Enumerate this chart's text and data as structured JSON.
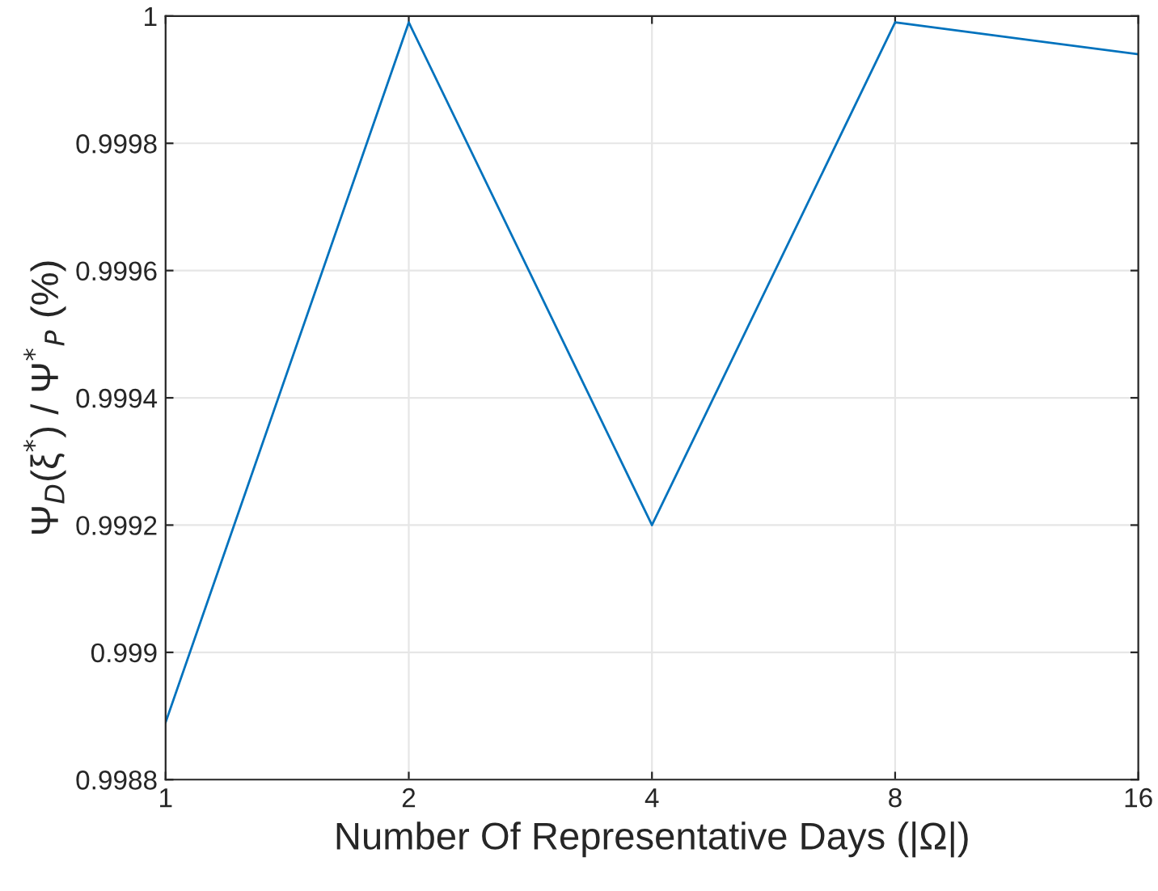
{
  "chart_data": {
    "type": "line",
    "xlabel": "Number Of Representative Days (|Ω|)",
    "ylabel": "Ψ$_{D}$(ξ$^{*}$) / Ψ$^{*}$$_{P}$ (%)",
    "x": [
      1,
      2,
      4,
      8,
      16
    ],
    "log": "x",
    "series": [
      {
        "color": "#0072bd",
        "values": [
          0.99889,
          0.99999,
          0.9992,
          0.99999,
          0.99994
        ]
      }
    ],
    "xlim": [
      1,
      16
    ],
    "xticks": [
      1,
      2,
      4,
      8,
      16
    ],
    "ylim": [
      0.9988,
      1
    ],
    "yticks": [
      0.9988,
      0.999,
      0.9992,
      0.9994,
      0.9996,
      0.9998,
      1
    ],
    "grid": true,
    "marker": "none",
    "line_style": "solid"
  }
}
